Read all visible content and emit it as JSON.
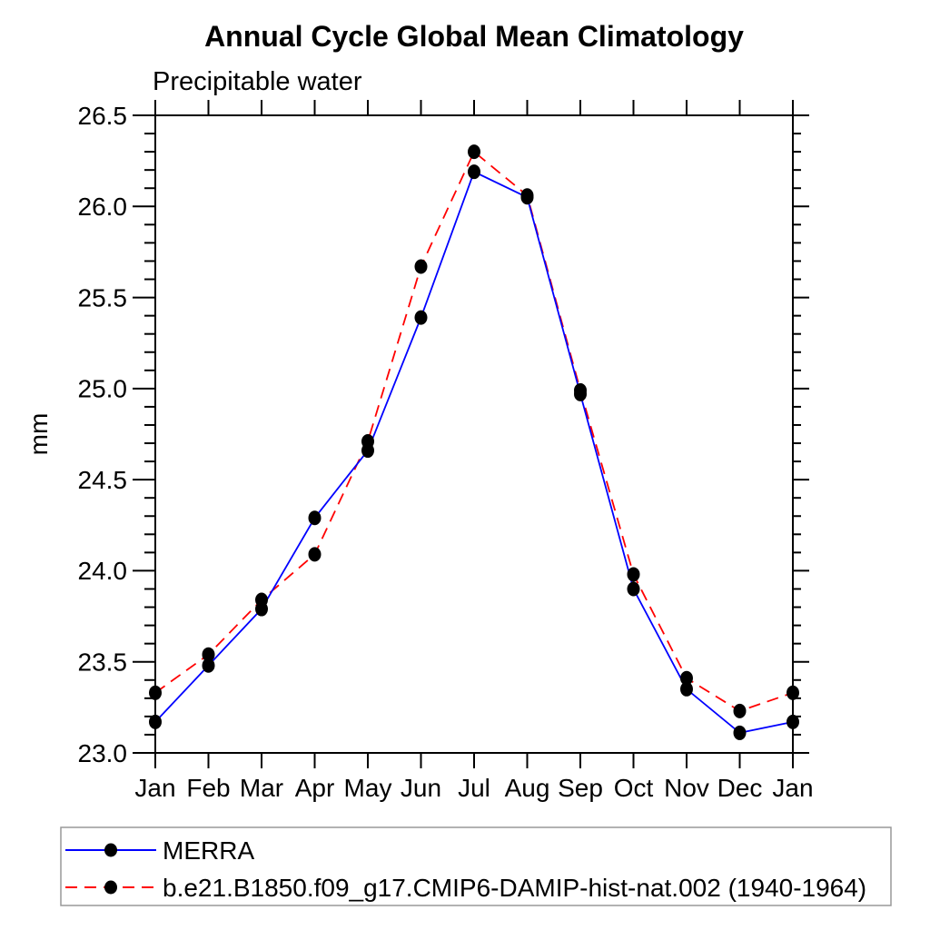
{
  "chart_data": {
    "type": "line",
    "title": "Annual Cycle Global Mean Climatology",
    "subtitle": "Precipitable water",
    "ylabel": "mm",
    "x_categories": [
      "Jan",
      "Feb",
      "Mar",
      "Apr",
      "May",
      "Jun",
      "Jul",
      "Aug",
      "Sep",
      "Oct",
      "Nov",
      "Dec",
      "Jan"
    ],
    "ylim": [
      23.0,
      26.5
    ],
    "y_major_step": 0.5,
    "y_minor_step": 0.1,
    "y_tick_labels": [
      "23.0",
      "23.5",
      "24.0",
      "24.5",
      "25.0",
      "25.5",
      "26.0",
      "26.5"
    ],
    "grid": false,
    "legend_position": "bottom-left",
    "marker_color": "#000000",
    "frame_color": "#000000",
    "series": [
      {
        "name": "MERRA",
        "color": "#0000ff",
        "line_style": "solid",
        "marker": "filled-circle",
        "values": [
          23.17,
          23.48,
          23.79,
          24.29,
          24.66,
          25.39,
          26.19,
          26.05,
          24.97,
          23.9,
          23.35,
          23.11,
          23.17
        ]
      },
      {
        "name": "b.e21.B1850.f09_g17.CMIP6-DAMIP-hist-nat.002 (1940-1964)",
        "color": "#ff0000",
        "line_style": "dashed",
        "marker": "filled-circle",
        "values": [
          23.33,
          23.54,
          23.84,
          24.09,
          24.71,
          25.67,
          26.3,
          26.06,
          24.99,
          23.98,
          23.41,
          23.23,
          23.33
        ]
      }
    ]
  }
}
